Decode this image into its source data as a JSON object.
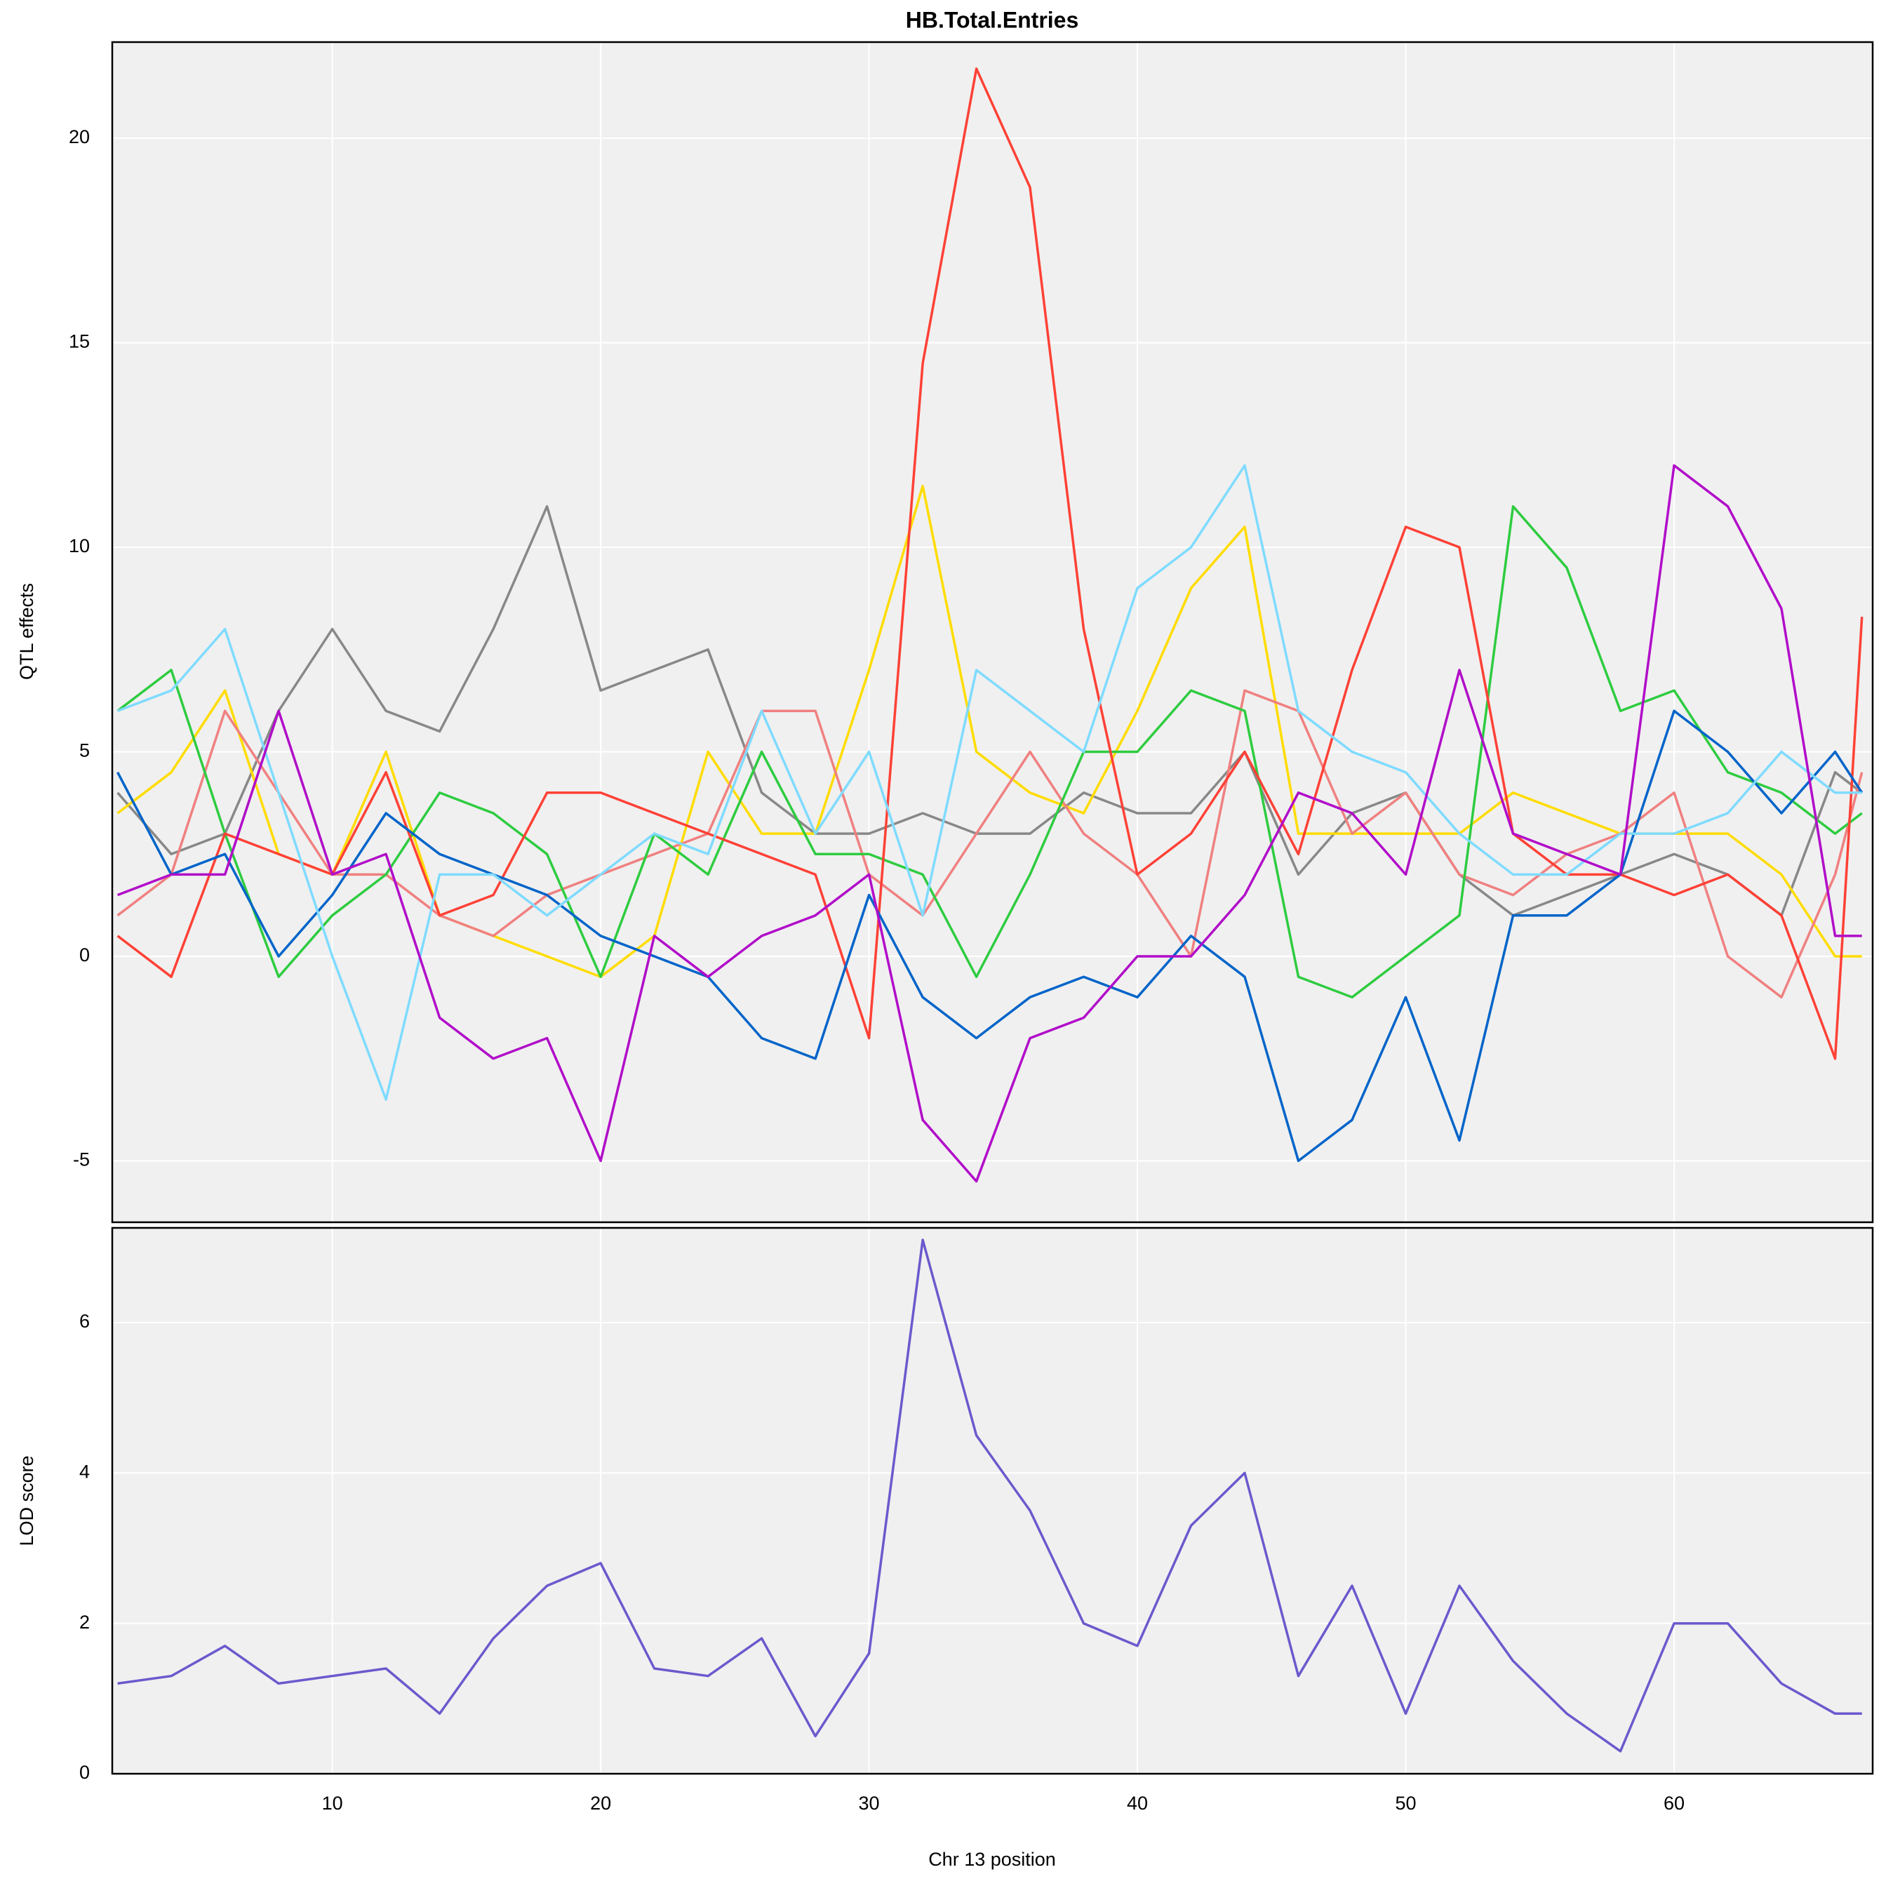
{
  "chart_data": [
    {
      "type": "line",
      "title": "HB.Total.Entries",
      "ylabel": "QTL effects",
      "x": [
        2,
        4,
        6,
        8,
        10,
        12,
        14,
        16,
        18,
        20,
        22,
        24,
        26,
        28,
        30,
        32,
        34,
        36,
        38,
        40,
        42,
        44,
        46,
        48,
        50,
        52,
        54,
        56,
        58,
        60,
        62,
        64,
        66,
        67
      ],
      "xlim": [
        1.8,
        67.4
      ],
      "ylim": [
        -6.5,
        22.35
      ],
      "yticks": [
        -5,
        0,
        5,
        10,
        15,
        20
      ],
      "grid": true,
      "series": [
        {
          "color": "#888888",
          "values": [
            4,
            2.5,
            3,
            6,
            8,
            6,
            5.5,
            8,
            11,
            6.5,
            7,
            7.5,
            4,
            3,
            3,
            3.5,
            3,
            3,
            4,
            3.5,
            3.5,
            5,
            2,
            3.5,
            4,
            2,
            1,
            1.5,
            2,
            2.5,
            2,
            1,
            4.5,
            4
          ]
        },
        {
          "color": "#FFDC00",
          "values": [
            3.5,
            4.5,
            6.5,
            2.5,
            2,
            5,
            1,
            0.5,
            0,
            -0.5,
            0.5,
            5,
            3,
            3,
            7,
            11.5,
            5,
            4,
            3.5,
            6,
            9,
            10.5,
            3,
            3,
            3,
            3,
            4,
            3.5,
            3,
            3,
            3,
            2,
            0,
            0
          ]
        },
        {
          "color": "#F08080",
          "values": [
            1,
            2,
            6,
            4,
            2,
            2,
            1,
            0.5,
            1.5,
            2,
            2.5,
            3,
            6,
            6,
            2,
            1,
            3,
            5,
            3,
            2,
            0,
            6.5,
            6,
            3,
            4,
            2,
            1.5,
            2.5,
            3,
            4,
            0,
            -1,
            2,
            4.5
          ]
        },
        {
          "color": "#2ECC40",
          "values": [
            6,
            7,
            3,
            -0.5,
            1,
            2,
            4,
            3.5,
            2.5,
            -0.5,
            3,
            2,
            5,
            2.5,
            2.5,
            2,
            -0.5,
            2,
            5,
            5,
            6.5,
            6,
            -0.5,
            -1,
            0,
            1,
            11,
            9.5,
            6,
            6.5,
            4.5,
            4,
            3,
            3.5
          ]
        },
        {
          "color": "#FF4136",
          "values": [
            0.5,
            -0.5,
            3,
            2.5,
            2,
            4.5,
            1,
            1.5,
            4,
            4,
            3.5,
            3,
            2.5,
            2,
            -2,
            14.5,
            21.7,
            18.8,
            8,
            2,
            3,
            5,
            2.5,
            7,
            10.5,
            10,
            3,
            2,
            2,
            1.5,
            2,
            1,
            -2.5,
            8.3
          ]
        },
        {
          "color": "#0064C9",
          "values": [
            4.5,
            2,
            2.5,
            0,
            1.5,
            3.5,
            2.5,
            2,
            1.5,
            0.5,
            0,
            -0.5,
            -2,
            -2.5,
            1.5,
            -1,
            -2,
            -1,
            -0.5,
            -1,
            0.5,
            -0.5,
            -5,
            -4,
            -1,
            -4.5,
            1,
            1,
            2,
            6,
            5,
            3.5,
            5,
            4
          ]
        },
        {
          "color": "#7FDBFF",
          "values": [
            6,
            6.5,
            8,
            4,
            0,
            -3.5,
            2,
            2,
            1,
            2,
            3,
            2.5,
            6,
            3,
            5,
            1,
            7,
            6,
            5,
            9,
            10,
            12,
            6,
            5,
            4.5,
            3,
            2,
            2,
            3,
            3,
            3.5,
            5,
            4,
            4
          ]
        },
        {
          "color": "#B10DC9",
          "values": [
            1.5,
            2,
            2,
            6,
            2,
            2.5,
            -1.5,
            -2.5,
            -2,
            -5,
            0.5,
            -0.5,
            0.5,
            1,
            2,
            -4,
            -5.5,
            -2,
            -1.5,
            0,
            0,
            1.5,
            4,
            3.5,
            2,
            7,
            3,
            2.5,
            2,
            12,
            11,
            8.5,
            0.5,
            0.5
          ]
        }
      ]
    },
    {
      "type": "line",
      "xlabel": "Chr 13 position",
      "ylabel": "LOD score",
      "x": [
        2,
        4,
        6,
        8,
        10,
        12,
        14,
        16,
        18,
        20,
        22,
        24,
        26,
        28,
        30,
        32,
        34,
        36,
        38,
        40,
        42,
        44,
        46,
        48,
        50,
        52,
        54,
        56,
        58,
        60,
        62,
        64,
        66,
        67
      ],
      "xlim": [
        1.8,
        67.4
      ],
      "xticks": [
        10,
        20,
        30,
        40,
        50,
        60
      ],
      "ylim": [
        0,
        7.26
      ],
      "yticks": [
        0,
        2,
        4,
        6
      ],
      "grid": true,
      "series": [
        {
          "color": "#6A5ACD",
          "values": [
            1.2,
            1.3,
            1.7,
            1.2,
            1.3,
            1.4,
            0.8,
            1.8,
            2.5,
            2.8,
            1.4,
            1.3,
            1.8,
            0.5,
            1.6,
            7.1,
            4.5,
            3.5,
            2,
            1.7,
            3.3,
            4,
            1.3,
            2.5,
            0.8,
            2.5,
            1.5,
            0.8,
            0.3,
            2,
            2,
            1.2,
            0.8,
            0.8
          ]
        }
      ]
    }
  ]
}
